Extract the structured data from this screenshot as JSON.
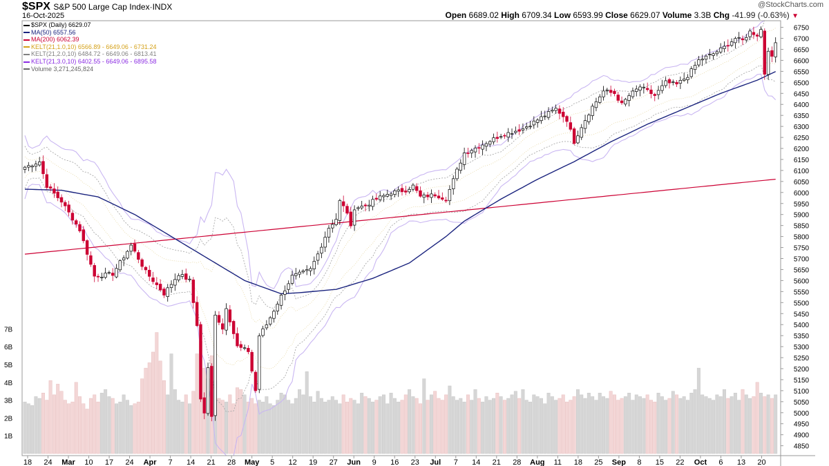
{
  "header": {
    "symbol": "$SPX",
    "name": "S&P 500 Large Cap Index",
    "exchange": "INDX",
    "date": "16-Oct-2025",
    "watermark": "@StockCharts.com"
  },
  "ohlc": {
    "open_label": "Open",
    "open": "6689.02",
    "high_label": "High",
    "high": "6709.34",
    "low_label": "Low",
    "low": "6593.99",
    "close_label": "Close",
    "close": "6629.07",
    "volume_label": "Volume",
    "volume": "3.3B",
    "chg_label": "Chg",
    "chg": "-41.99 (-0.63%)"
  },
  "legend": [
    {
      "text": "$SPX (Daily) 6629.07",
      "color": "#000000"
    },
    {
      "text": "MA(50) 6557.56",
      "color": "#1a237e"
    },
    {
      "text": "MA(200) 6062.39",
      "color": "#cc0033"
    },
    {
      "text": "KELT(21,1.0,10) 6566.89 - 6649.06 - 6731.24",
      "color": "#d4a017"
    },
    {
      "text": "KELT(21,2.0,10) 6484.72 - 6649.06 - 6813.41",
      "color": "#808080"
    },
    {
      "text": "KELT(21,3.0,10) 6402.55 - 6649.06 - 6895.58",
      "color": "#8a2be2"
    },
    {
      "text": "Volume 3,271,245,824",
      "color": "#666666"
    }
  ],
  "chart_data": {
    "type": "candlestick",
    "price_ticks": [
      4850,
      4900,
      4950,
      5000,
      5050,
      5100,
      5150,
      5200,
      5250,
      5300,
      5350,
      5400,
      5450,
      5500,
      5550,
      5600,
      5650,
      5700,
      5750,
      5800,
      5850,
      5900,
      5950,
      6000,
      6050,
      6100,
      6150,
      6200,
      6250,
      6300,
      6350,
      6400,
      6450,
      6500,
      6550,
      6600,
      6650,
      6700,
      6750
    ],
    "volume_ticks": [
      "1B",
      "2B",
      "3B",
      "4B",
      "5B",
      "6B",
      "7B"
    ],
    "ylim": [
      4805,
      6780
    ],
    "x_labels": [
      "18",
      "24",
      "Mar",
      "10",
      "17",
      "24",
      "Apr",
      "7",
      "14",
      "21",
      "28",
      "May",
      "5",
      "12",
      "19",
      "27",
      "Jun",
      "9",
      "16",
      "23",
      "Jul",
      "7",
      "14",
      "21",
      "28",
      "Aug",
      "11",
      "18",
      "25",
      "Sep",
      "8",
      "15",
      "22",
      "Oct",
      "6",
      "13",
      "20"
    ],
    "bold_labels": [
      "Mar",
      "Apr",
      "May",
      "Jun",
      "Jul",
      "Aug",
      "Sep",
      "Oct"
    ],
    "keypoints": [
      [
        0,
        6115
      ],
      [
        4,
        6140
      ],
      [
        6,
        6030
      ],
      [
        10,
        5960
      ],
      [
        15,
        5830
      ],
      [
        19,
        5620
      ],
      [
        24,
        5630
      ],
      [
        29,
        5760
      ],
      [
        33,
        5640
      ],
      [
        38,
        5540
      ],
      [
        42,
        5630
      ],
      [
        45,
        5600
      ],
      [
        47,
        5400
      ],
      [
        48,
        5060
      ],
      [
        49,
        5000
      ],
      [
        50,
        5200
      ],
      [
        51,
        4980
      ],
      [
        52,
        5450
      ],
      [
        54,
        5380
      ],
      [
        55,
        5480
      ],
      [
        58,
        5300
      ],
      [
        61,
        5280
      ],
      [
        63,
        5100
      ],
      [
        64,
        5350
      ],
      [
        66,
        5400
      ],
      [
        70,
        5530
      ],
      [
        73,
        5620
      ],
      [
        75,
        5630
      ],
      [
        78,
        5650
      ],
      [
        80,
        5720
      ],
      [
        83,
        5840
      ],
      [
        85,
        5880
      ],
      [
        86,
        5960
      ],
      [
        88,
        5910
      ],
      [
        89,
        5840
      ],
      [
        90,
        5930
      ],
      [
        93,
        5940
      ],
      [
        96,
        5970
      ],
      [
        100,
        6000
      ],
      [
        104,
        6010
      ],
      [
        106,
        6030
      ],
      [
        108,
        5980
      ],
      [
        112,
        5990
      ],
      [
        115,
        5970
      ],
      [
        118,
        6100
      ],
      [
        120,
        6180
      ],
      [
        124,
        6210
      ],
      [
        130,
        6260
      ],
      [
        136,
        6290
      ],
      [
        140,
        6330
      ],
      [
        145,
        6380
      ],
      [
        148,
        6330
      ],
      [
        150,
        6230
      ],
      [
        152,
        6300
      ],
      [
        155,
        6390
      ],
      [
        158,
        6460
      ],
      [
        161,
        6450
      ],
      [
        163,
        6400
      ],
      [
        165,
        6440
      ],
      [
        168,
        6480
      ],
      [
        172,
        6440
      ],
      [
        175,
        6500
      ],
      [
        178,
        6490
      ],
      [
        181,
        6530
      ],
      [
        184,
        6600
      ],
      [
        188,
        6630
      ],
      [
        191,
        6660
      ],
      [
        194,
        6700
      ],
      [
        196,
        6690
      ],
      [
        198,
        6730
      ],
      [
        200,
        6715
      ],
      [
        201,
        6740
      ],
      [
        202,
        6540
      ],
      [
        203,
        6650
      ],
      [
        204,
        6610
      ],
      [
        205,
        6680
      ],
      [
        206,
        6629
      ]
    ],
    "volumes": [
      2.9,
      2.8,
      2.7,
      3.2,
      3.1,
      3.4,
      3.0,
      4.1,
      3.3,
      3.9,
      3.5,
      3.0,
      2.8,
      2.9,
      4.0,
      3.2,
      2.8,
      2.5,
      3.1,
      3.3,
      2.9,
      3.4,
      3.6,
      3.2,
      3.1,
      2.8,
      2.9,
      3.3,
      3.0,
      2.7,
      2.8,
      2.9,
      4.2,
      4.8,
      5.1,
      5.7,
      6.8,
      5.2,
      4.1,
      3.3,
      5.6,
      3.6,
      3.0,
      2.9,
      3.3,
      2.8,
      3.5,
      5.6,
      6.3,
      4.8,
      4.2,
      5.5,
      4.1,
      3.1,
      3.0,
      2.9,
      3.3,
      2.8,
      3.7,
      3.6,
      3.3,
      2.9,
      3.1,
      2.8,
      3.0,
      2.9,
      3.2,
      2.8,
      2.7,
      3.0,
      3.4,
      3.3,
      3.0,
      2.8,
      3.1,
      3.6,
      3.3,
      4.6,
      3.2,
      2.9,
      3.5,
      3.1,
      2.9,
      3.0,
      3.2,
      3.0,
      2.8,
      3.3,
      2.9,
      3.1,
      3.0,
      2.8,
      3.4,
      3.2,
      3.1,
      2.9,
      3.0,
      3.2,
      3.3,
      2.8,
      3.4,
      3.1,
      2.9,
      3.0,
      3.3,
      3.6,
      3.2,
      3.1,
      2.8,
      4.2,
      3.0,
      3.3,
      3.5,
      3.1,
      3.0,
      3.3,
      3.8,
      3.2,
      3.0,
      3.1,
      2.9,
      3.3,
      3.0,
      3.6,
      3.1,
      2.9,
      3.2,
      3.0,
      3.1,
      3.4,
      3.2,
      3.0,
      3.1,
      3.3,
      3.5,
      3.1,
      3.6,
      3.0,
      2.9,
      3.3,
      3.2,
      3.1,
      2.8,
      3.4,
      3.2,
      3.0,
      3.1,
      3.3,
      2.9,
      3.0,
      3.2,
      3.6,
      3.3,
      3.1,
      3.4,
      3.2,
      3.0,
      3.4,
      3.2,
      3.1,
      3.5,
      3.3,
      3.0,
      3.1,
      3.2,
      3.4,
      3.0,
      3.3,
      3.2,
      3.1,
      3.3,
      3.0,
      2.9,
      3.4,
      3.2,
      3.0,
      3.1,
      3.5,
      3.3,
      3.1,
      3.2,
      3.0,
      3.4,
      3.6,
      4.8,
      3.3,
      3.2,
      3.1,
      3.0,
      3.3,
      3.2,
      3.6,
      3.1,
      3.2,
      3.4,
      3.0,
      3.6,
      3.3,
      3.1,
      3.2,
      4.0,
      3.4,
      3.2,
      3.3,
      3.1,
      3.3
    ],
    "ma200": [
      [
        0,
        5720
      ],
      [
        206,
        6062
      ]
    ],
    "ma50": [
      [
        0,
        6015
      ],
      [
        10,
        6010
      ],
      [
        20,
        5980
      ],
      [
        30,
        5900
      ],
      [
        40,
        5800
      ],
      [
        50,
        5700
      ],
      [
        60,
        5600
      ],
      [
        70,
        5540
      ],
      [
        75,
        5545
      ],
      [
        85,
        5560
      ],
      [
        95,
        5610
      ],
      [
        105,
        5680
      ],
      [
        110,
        5740
      ],
      [
        115,
        5800
      ],
      [
        120,
        5870
      ],
      [
        130,
        5970
      ],
      [
        140,
        6060
      ],
      [
        150,
        6140
      ],
      [
        160,
        6230
      ],
      [
        170,
        6310
      ],
      [
        180,
        6380
      ],
      [
        190,
        6450
      ],
      [
        200,
        6510
      ],
      [
        206,
        6557
      ]
    ]
  }
}
